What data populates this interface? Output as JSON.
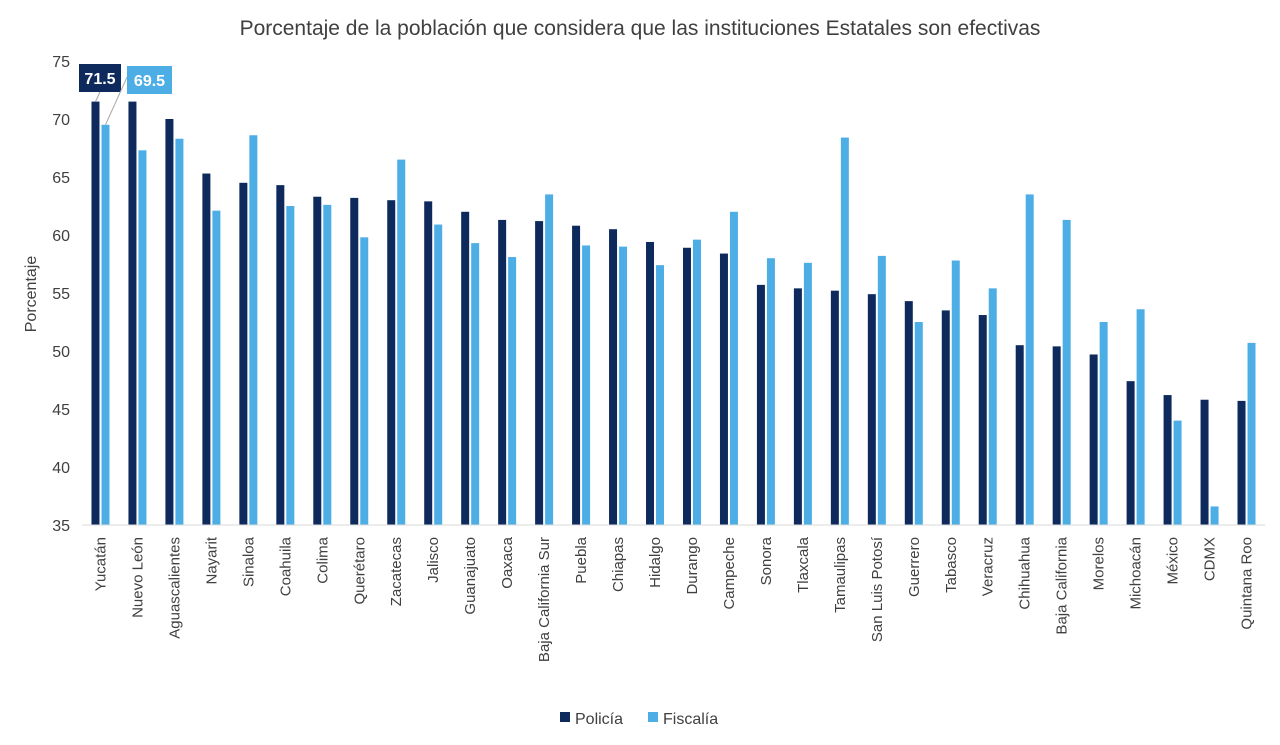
{
  "chart_data": {
    "type": "bar",
    "title": "Porcentaje de la población que considera que las instituciones Estatales son efectivas",
    "xlabel": "",
    "ylabel": "Porcentaje",
    "ylim": [
      35,
      75
    ],
    "yticks": [
      "35",
      "40",
      "45",
      "50",
      "55",
      "60",
      "65",
      "70",
      "75"
    ],
    "grid": false,
    "legend_position": "bottom",
    "categories": [
      "Yucatán",
      "Nuevo León",
      "Aguascalientes",
      "Nayarit",
      "Sinaloa",
      "Coahuila",
      "Colima",
      "Querétaro",
      "Zacatecas",
      "Jalisco",
      "Guanajuato",
      "Oaxaca",
      "Baja California Sur",
      "Puebla",
      "Chiapas",
      "Hidalgo",
      "Durango",
      "Campeche",
      "Sonora",
      "Tlaxcala",
      "Tamaulipas",
      "San Luis Potosí",
      "Guerrero",
      "Tabasco",
      "Veracruz",
      "Chihuahua",
      "Baja California",
      "Morelos",
      "Michoacán",
      "México",
      "CDMX",
      "Quintana Roo"
    ],
    "series": [
      {
        "name": "Policía",
        "color": "#0e2a5c",
        "values": [
          71.5,
          71.5,
          70.0,
          65.3,
          64.5,
          64.3,
          63.3,
          63.2,
          63.0,
          62.9,
          62.0,
          61.3,
          61.2,
          60.8,
          60.5,
          59.4,
          58.9,
          58.4,
          55.7,
          55.4,
          55.2,
          54.9,
          54.3,
          53.5,
          53.1,
          50.5,
          50.4,
          49.7,
          47.4,
          46.2,
          45.8,
          45.7
        ]
      },
      {
        "name": "Fiscalía",
        "color": "#4daee6",
        "values": [
          69.5,
          67.3,
          68.3,
          62.1,
          68.6,
          62.5,
          62.6,
          59.8,
          66.5,
          60.9,
          59.3,
          58.1,
          63.5,
          59.1,
          59.0,
          57.4,
          59.6,
          62.0,
          58.0,
          57.6,
          68.4,
          58.2,
          52.5,
          57.8,
          55.4,
          63.5,
          61.3,
          52.5,
          53.6,
          44.0,
          36.6,
          50.7
        ]
      }
    ],
    "data_labels": [
      {
        "series": 0,
        "category": 0,
        "text": "71.5"
      },
      {
        "series": 1,
        "category": 0,
        "text": "69.5"
      }
    ]
  }
}
